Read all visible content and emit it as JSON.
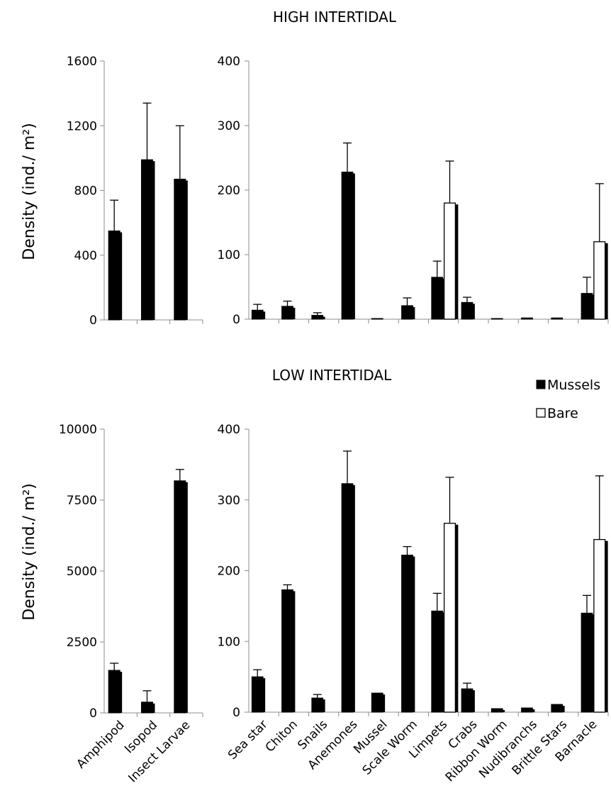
{
  "colors": {
    "mussels": "#000000",
    "bare": "#ffffff",
    "outline": "#000000"
  },
  "chart_data": [
    {
      "id": "high-large",
      "type": "bar",
      "title": "HIGH INTERTIDAL",
      "ylabel": "Density (ind./ m²)",
      "ylim": [
        0,
        1600
      ],
      "yticks": [
        "0",
        "400",
        "800",
        "1200",
        "1600"
      ],
      "categories": [
        "Amphipod",
        "Isopod",
        "Insect Larvae"
      ],
      "series": [
        {
          "name": "Mussels",
          "values": [
            550,
            990,
            870
          ],
          "errors": [
            190,
            350,
            330
          ]
        },
        {
          "name": "Bare",
          "values": [
            0,
            0,
            0
          ],
          "errors": [
            0,
            0,
            0
          ]
        }
      ],
      "grid": false
    },
    {
      "id": "high-small",
      "type": "bar",
      "ylim": [
        0,
        400
      ],
      "yticks": [
        "0",
        "100",
        "200",
        "300",
        "400"
      ],
      "categories": [
        "Sea star",
        "Chiton",
        "Snails",
        "Anemones",
        "Mussel",
        "Scale Worm",
        "Limpets",
        "Crabs",
        "Ribbon Worm",
        "Nudibranchs",
        "Brittle Stars",
        "Barnacle"
      ],
      "series": [
        {
          "name": "Mussels",
          "values": [
            14,
            20,
            6,
            228,
            0.5,
            21,
            65,
            26,
            0.5,
            2,
            2,
            40
          ],
          "errors": [
            9,
            8,
            4,
            45,
            0,
            12,
            25,
            8,
            0,
            0,
            0,
            25
          ]
        },
        {
          "name": "Bare",
          "values": [
            0,
            0,
            0,
            0,
            0,
            0,
            180,
            0,
            0,
            0,
            0,
            120
          ],
          "errors": [
            0,
            0,
            0,
            0,
            0,
            0,
            65,
            0,
            0,
            0,
            0,
            90
          ]
        }
      ],
      "grid": false
    },
    {
      "id": "low-large",
      "type": "bar",
      "title": "LOW INTERTIDAL",
      "ylabel": "Density (ind./ m²)",
      "ylim": [
        0,
        10000
      ],
      "yticks": [
        "0",
        "2500",
        "5000",
        "7500",
        "10000"
      ],
      "categories": [
        "Amphipod",
        "Isopod",
        "Insect Larvae"
      ],
      "series": [
        {
          "name": "Mussels",
          "values": [
            1500,
            380,
            8180
          ],
          "errors": [
            250,
            400,
            400
          ]
        },
        {
          "name": "Bare",
          "values": [
            0,
            0,
            0
          ],
          "errors": [
            0,
            0,
            0
          ]
        }
      ],
      "grid": false
    },
    {
      "id": "low-small",
      "type": "bar",
      "ylim": [
        0,
        400
      ],
      "yticks": [
        "0",
        "100",
        "200",
        "300",
        "400"
      ],
      "categories": [
        "Sea star",
        "Chiton",
        "Snails",
        "Anemones",
        "Mussel",
        "Scale Worm",
        "Limpets",
        "Crabs",
        "Ribbon Worm",
        "Nudibranchs",
        "Brittle Stars",
        "Barnacle"
      ],
      "series": [
        {
          "name": "Mussels",
          "values": [
            50,
            173,
            20,
            323,
            27,
            222,
            143,
            33,
            5,
            6,
            11,
            140
          ],
          "errors": [
            10,
            7,
            5,
            46,
            0,
            12,
            25,
            8,
            0,
            0,
            0,
            25
          ]
        },
        {
          "name": "Bare",
          "values": [
            0,
            0,
            0,
            0,
            0,
            0,
            267,
            0,
            0,
            0,
            0,
            244
          ],
          "errors": [
            0,
            0,
            0,
            0,
            0,
            0,
            65,
            0,
            0,
            0,
            0,
            90
          ]
        }
      ],
      "grid": false
    }
  ],
  "legend": {
    "placement": "right, between the two rows",
    "items": [
      {
        "label": "Mussels",
        "swatch": "filled"
      },
      {
        "label": "Bare",
        "swatch": "open"
      }
    ]
  }
}
